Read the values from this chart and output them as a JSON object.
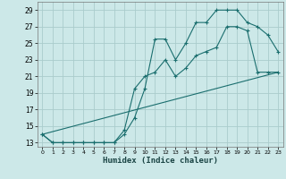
{
  "xlabel": "Humidex (Indice chaleur)",
  "background_color": "#cce8e8",
  "grid_color": "#aacccc",
  "line_color": "#1a6e6e",
  "xlim": [
    -0.5,
    23.5
  ],
  "ylim": [
    12.5,
    30
  ],
  "yticks": [
    13,
    15,
    17,
    19,
    21,
    23,
    25,
    27,
    29
  ],
  "xticks": [
    0,
    1,
    2,
    3,
    4,
    5,
    6,
    7,
    8,
    9,
    10,
    11,
    12,
    13,
    14,
    15,
    16,
    17,
    18,
    19,
    20,
    21,
    22,
    23
  ],
  "line1_x": [
    0,
    1,
    2,
    3,
    4,
    5,
    6,
    7,
    8,
    9,
    10,
    11,
    12,
    13,
    14,
    15,
    16,
    17,
    18,
    19,
    20,
    21,
    22,
    23
  ],
  "line1_y": [
    14,
    13,
    13,
    13,
    13,
    13,
    13,
    13,
    14,
    16,
    19.5,
    25.5,
    25.5,
    23,
    25,
    27.5,
    27.5,
    29,
    29,
    29,
    27.5,
    27,
    26,
    24
  ],
  "line2_x": [
    0,
    1,
    2,
    3,
    4,
    5,
    6,
    7,
    8,
    9,
    10,
    11,
    12,
    13,
    14,
    15,
    16,
    17,
    18,
    19,
    20,
    21,
    22,
    23
  ],
  "line2_y": [
    14,
    13,
    13,
    13,
    13,
    13,
    13,
    13,
    14.5,
    19.5,
    21,
    21.5,
    23,
    21,
    22,
    23.5,
    24,
    24.5,
    27,
    27,
    26.5,
    21.5,
    21.5,
    21.5
  ],
  "line3_x": [
    0,
    23
  ],
  "line3_y": [
    14,
    21.5
  ]
}
